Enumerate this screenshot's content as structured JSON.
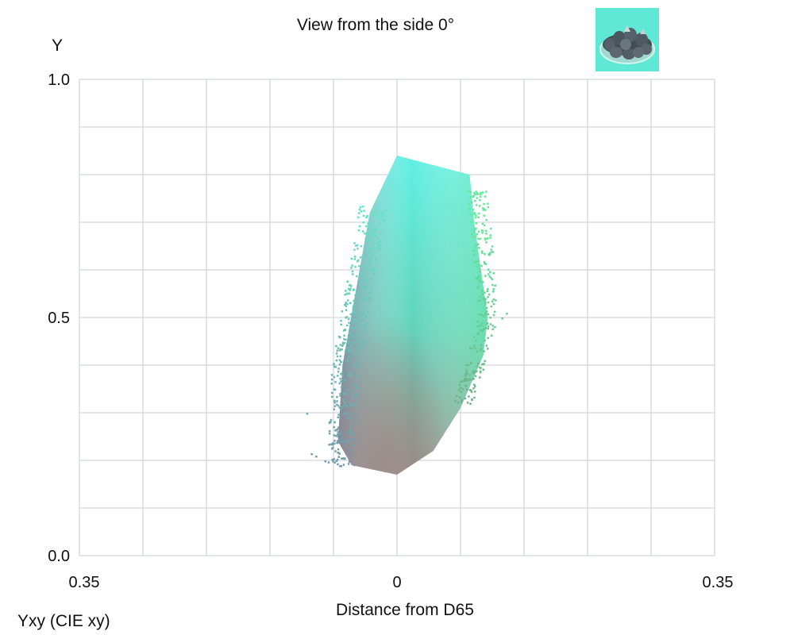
{
  "chart_data": {
    "type": "scatter",
    "title": "View from the side 0°",
    "ylabel": "Y",
    "xlabel": "Distance from D65",
    "corner_label": "Yxy (CIE xy)",
    "xlim": [
      -0.35,
      0.35
    ],
    "ylim": [
      0.0,
      1.0
    ],
    "x_tick_labels": [
      {
        "value": -0.35,
        "label": "0.35"
      },
      {
        "value": 0,
        "label": "0"
      },
      {
        "value": 0.35,
        "label": "0.35"
      }
    ],
    "y_tick_labels": [
      {
        "value": 0.0,
        "label": "0.0"
      },
      {
        "value": 0.5,
        "label": "0.5"
      },
      {
        "value": 1.0,
        "label": "1.0"
      }
    ],
    "x_gridlines": [
      -0.35,
      -0.28,
      -0.21,
      -0.14,
      -0.07,
      0,
      0.07,
      0.14,
      0.21,
      0.28,
      0.35
    ],
    "y_gridlines": [
      0.0,
      0.1,
      0.2,
      0.3,
      0.4,
      0.5,
      0.6,
      0.7,
      0.8,
      0.9,
      1.0
    ],
    "grid": true,
    "point_cloud_outline": [
      {
        "x": 0.0,
        "y": 0.84
      },
      {
        "x": 0.08,
        "y": 0.8
      },
      {
        "x": 0.085,
        "y": 0.7
      },
      {
        "x": 0.1,
        "y": 0.5
      },
      {
        "x": 0.095,
        "y": 0.42
      },
      {
        "x": 0.07,
        "y": 0.31
      },
      {
        "x": 0.04,
        "y": 0.22
      },
      {
        "x": 0.0,
        "y": 0.17
      },
      {
        "x": -0.05,
        "y": 0.19
      },
      {
        "x": -0.065,
        "y": 0.24
      },
      {
        "x": -0.06,
        "y": 0.4
      },
      {
        "x": -0.03,
        "y": 0.72
      }
    ],
    "color_gradient": {
      "top": "#5ff0e4",
      "upper_right": "#6ce8a8",
      "middle": "#62d2b8",
      "lower_left": "#7b7d9c",
      "bottom": "#9a8a86"
    },
    "thumbnail": {
      "background": "#5fe8d6",
      "subject": "bowl of dark fruit"
    }
  }
}
